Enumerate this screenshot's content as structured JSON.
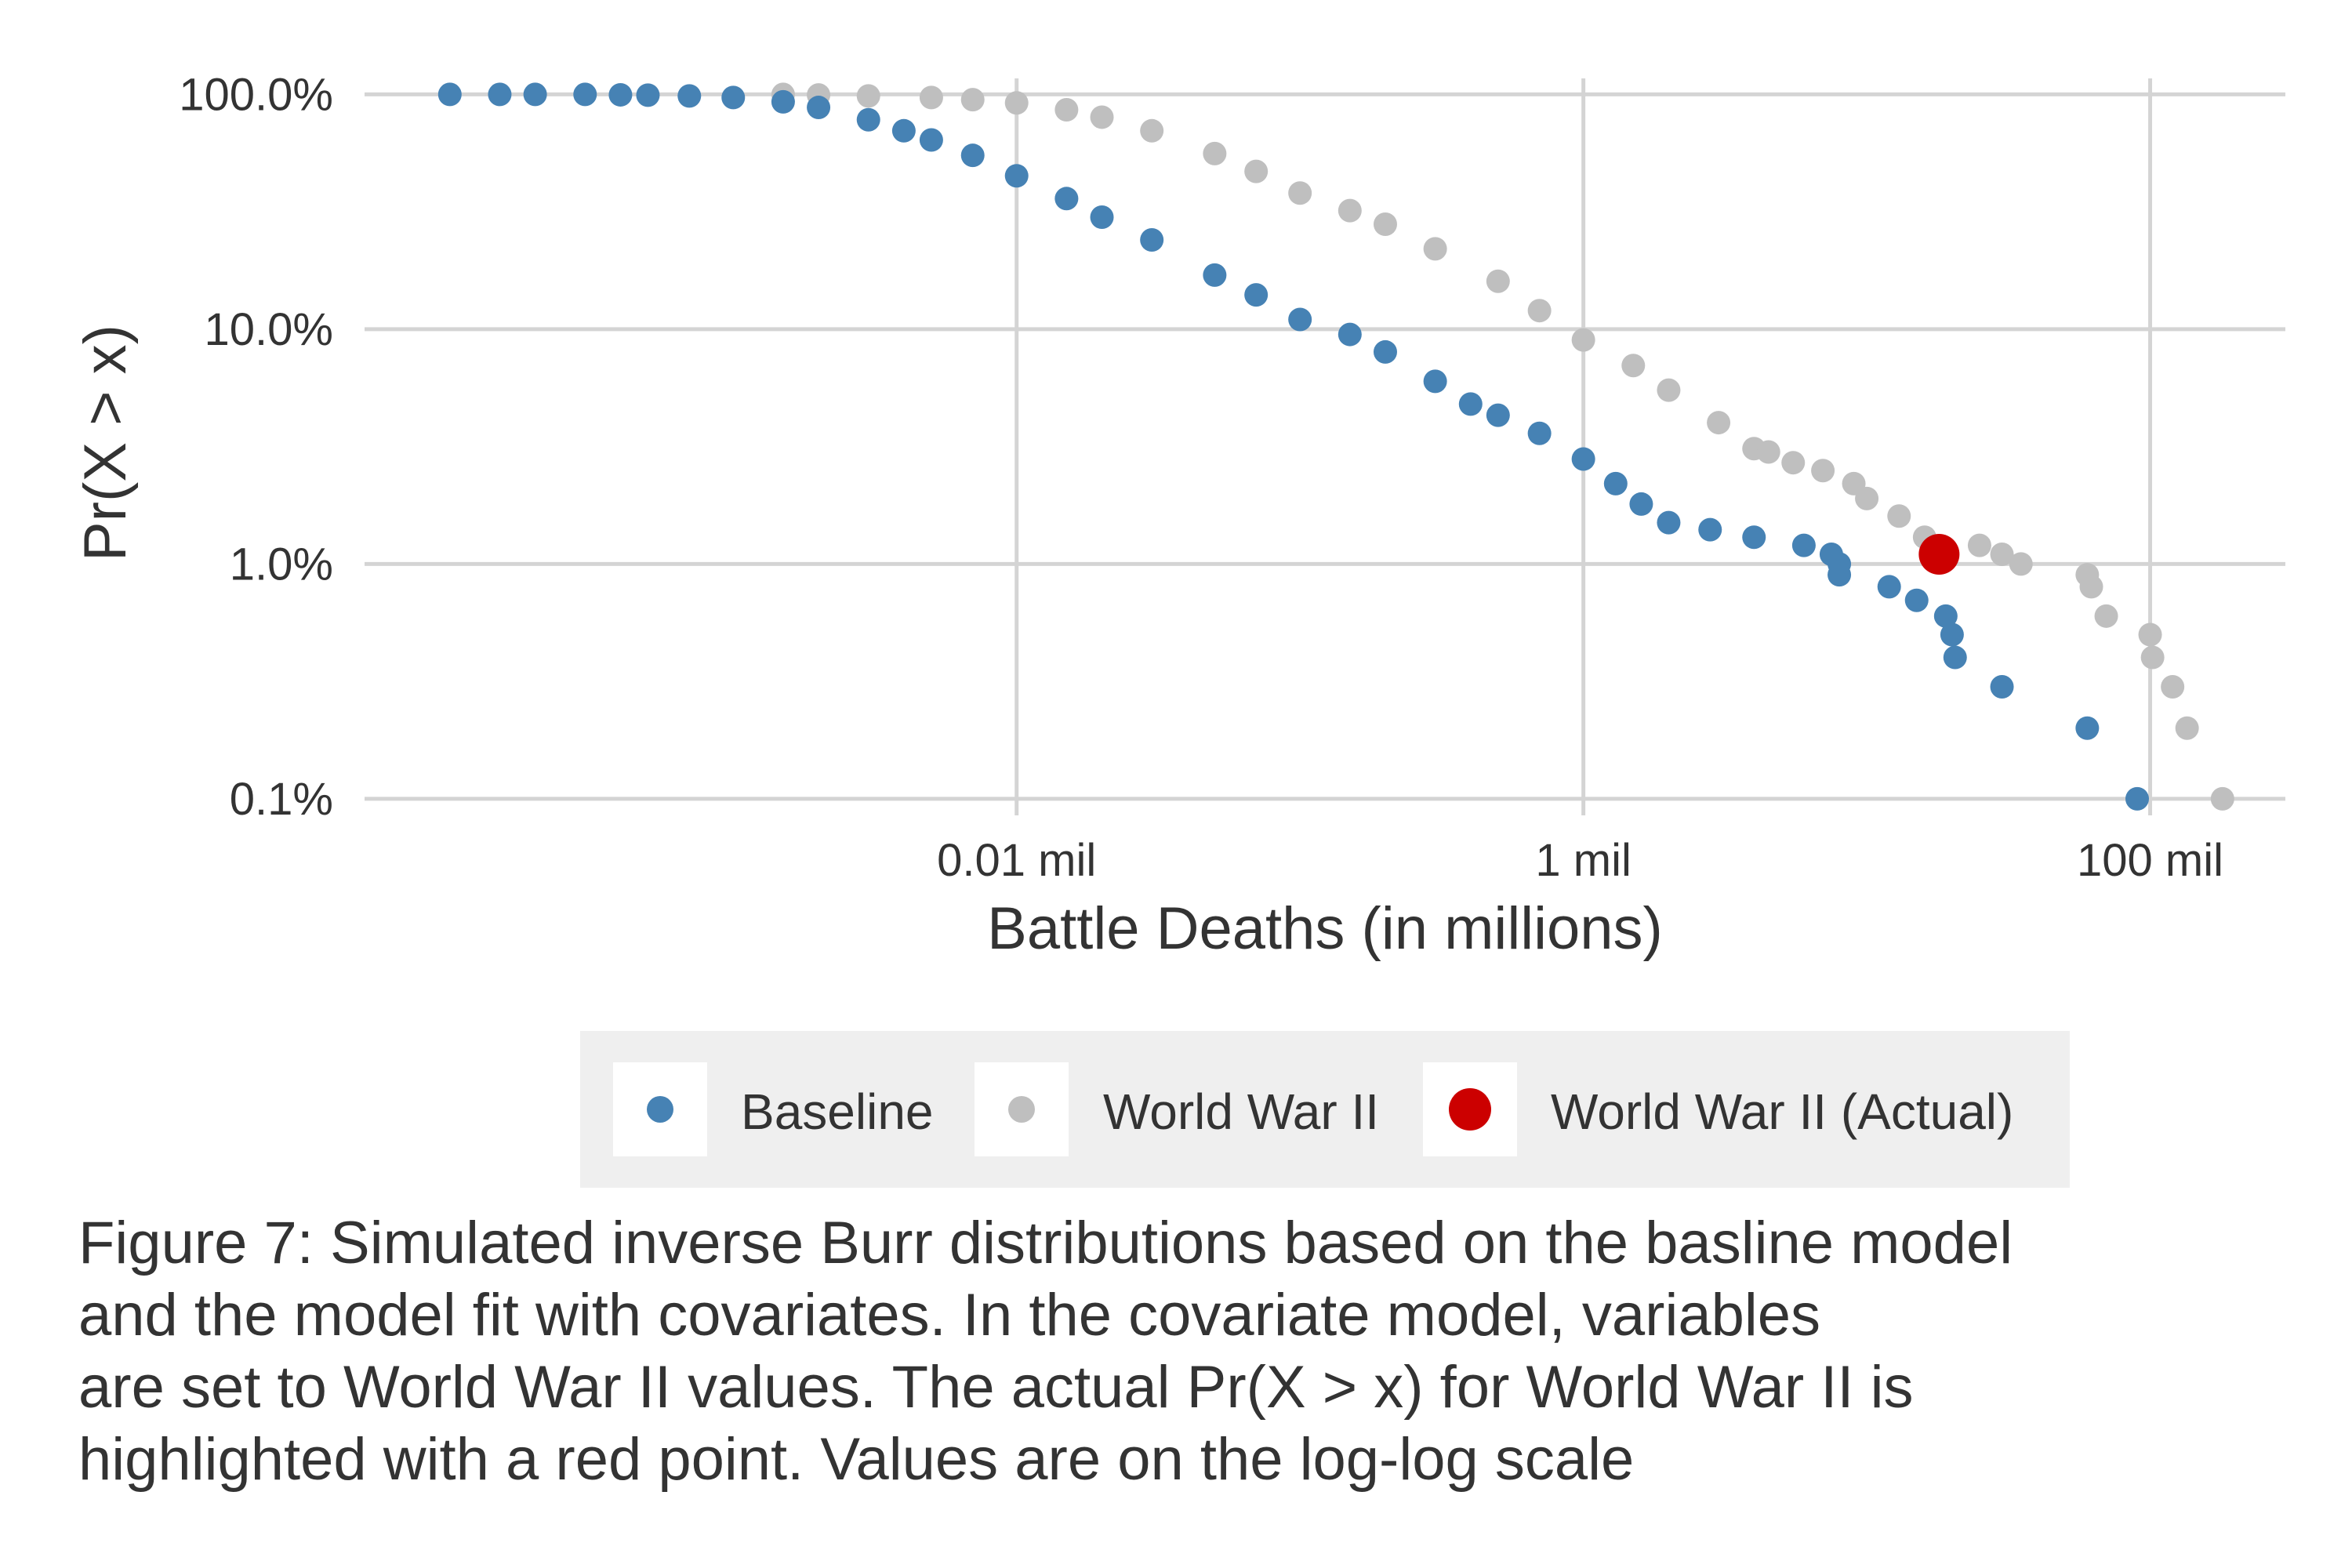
{
  "chart_data": {
    "type": "scatter",
    "xlabel": "Battle Deaths (in millions)",
    "ylabel": "Pr(X > x)",
    "x_scale": "log",
    "y_scale": "log",
    "x_ticks": [
      {
        "value": 0.01,
        "label": "0.01 mil"
      },
      {
        "value": 1,
        "label": "1 mil"
      },
      {
        "value": 100,
        "label": "100 mil"
      }
    ],
    "y_ticks": [
      {
        "value": 1,
        "label": "100.0%"
      },
      {
        "value": 0.1,
        "label": "10.0%"
      },
      {
        "value": 0.01,
        "label": "1.0%"
      },
      {
        "value": 0.001,
        "label": "0.1%"
      }
    ],
    "xlim": [
      5e-05,
      300
    ],
    "ylim": [
      0.00085,
      1.17
    ],
    "grid": true,
    "legend_position": "bottom",
    "series": [
      {
        "name": "Baseline",
        "color": "#4682b4",
        "points": [
          [
            0.0001,
            1.0
          ],
          [
            0.00015,
            1.0
          ],
          [
            0.0002,
            1.0
          ],
          [
            0.0003,
            1.0
          ],
          [
            0.0004,
            0.996
          ],
          [
            0.0005,
            0.993
          ],
          [
            0.0007,
            0.985
          ],
          [
            0.001,
            0.97
          ],
          [
            0.0015,
            0.93
          ],
          [
            0.002,
            0.88
          ],
          [
            0.003,
            0.78
          ],
          [
            0.004,
            0.7
          ],
          [
            0.005,
            0.64
          ],
          [
            0.007,
            0.55
          ],
          [
            0.01,
            0.45
          ],
          [
            0.015,
            0.36
          ],
          [
            0.02,
            0.3
          ],
          [
            0.03,
            0.24
          ],
          [
            0.05,
            0.17
          ],
          [
            0.07,
            0.14
          ],
          [
            0.1,
            0.11
          ],
          [
            0.15,
            0.095
          ],
          [
            0.2,
            0.08
          ],
          [
            0.3,
            0.06
          ],
          [
            0.4,
            0.048
          ],
          [
            0.5,
            0.043
          ],
          [
            0.7,
            0.036
          ],
          [
            1.0,
            0.028
          ],
          [
            1.3,
            0.022
          ],
          [
            1.6,
            0.018
          ],
          [
            2.0,
            0.015
          ],
          [
            2.8,
            0.014
          ],
          [
            4.0,
            0.013
          ],
          [
            6.0,
            0.012
          ],
          [
            7.5,
            0.011
          ],
          [
            8.0,
            0.01
          ],
          [
            8.0,
            0.009
          ],
          [
            12.0,
            0.008
          ],
          [
            15.0,
            0.007
          ],
          [
            19.0,
            0.006
          ],
          [
            20.0,
            0.005
          ],
          [
            20.5,
            0.004
          ],
          [
            30.0,
            0.003
          ],
          [
            60.0,
            0.002
          ],
          [
            90.0,
            0.001
          ]
        ]
      },
      {
        "name": "World War II",
        "color": "#bfbfbf",
        "points": [
          [
            0.0015,
            1.0
          ],
          [
            0.002,
            0.995
          ],
          [
            0.003,
            0.985
          ],
          [
            0.005,
            0.97
          ],
          [
            0.007,
            0.95
          ],
          [
            0.01,
            0.92
          ],
          [
            0.015,
            0.86
          ],
          [
            0.02,
            0.8
          ],
          [
            0.03,
            0.7
          ],
          [
            0.05,
            0.56
          ],
          [
            0.07,
            0.47
          ],
          [
            0.1,
            0.38
          ],
          [
            0.15,
            0.32
          ],
          [
            0.2,
            0.28
          ],
          [
            0.3,
            0.22
          ],
          [
            0.5,
            0.16
          ],
          [
            0.7,
            0.12
          ],
          [
            1.0,
            0.09
          ],
          [
            1.5,
            0.07
          ],
          [
            2.0,
            0.055
          ],
          [
            3.0,
            0.04
          ],
          [
            4.0,
            0.031
          ],
          [
            4.5,
            0.03
          ],
          [
            5.5,
            0.027
          ],
          [
            7.0,
            0.025
          ],
          [
            9.0,
            0.022
          ],
          [
            10.0,
            0.019
          ],
          [
            13.0,
            0.016
          ],
          [
            16.0,
            0.013
          ],
          [
            25.0,
            0.012
          ],
          [
            30.0,
            0.011
          ],
          [
            35.0,
            0.01
          ],
          [
            60.0,
            0.009
          ],
          [
            62.0,
            0.008
          ],
          [
            70.0,
            0.006
          ],
          [
            100.0,
            0.005
          ],
          [
            102.0,
            0.004
          ],
          [
            120.0,
            0.003
          ],
          [
            135.0,
            0.002
          ],
          [
            180.0,
            0.001
          ]
        ]
      },
      {
        "name": "World War II (Actual)",
        "color": "#cc0000",
        "points": [
          [
            18.0,
            0.011
          ]
        ]
      }
    ]
  },
  "caption": [
    "Figure 7: Simulated inverse Burr distributions based on the basline model",
    "and the model fit with covariates. In the covariate model, variables",
    "are set to World War II values. The actual Pr(X > x) for World War II is",
    "highlighted with a red point. Values are on the log-log scale"
  ]
}
